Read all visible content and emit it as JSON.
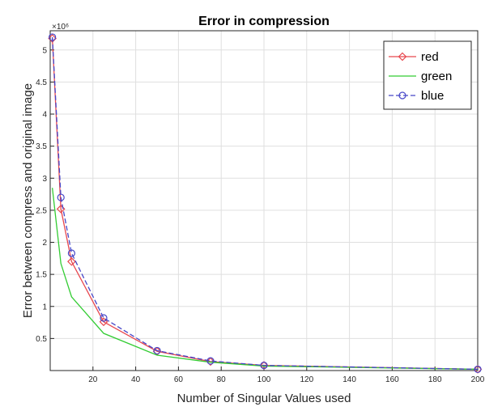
{
  "chart_data": {
    "type": "line",
    "title": "Error in compression",
    "xlabel": "Number of Singular Values used",
    "ylabel": "Error between compress and original image",
    "x": [
      1,
      5,
      10,
      25,
      50,
      75,
      100,
      200
    ],
    "xlim": [
      0,
      200
    ],
    "ylim": [
      0,
      5.3
    ],
    "y_exponent_label": "×10⁶",
    "xticks": [
      20,
      40,
      60,
      80,
      100,
      120,
      140,
      160,
      180,
      200
    ],
    "yticks": [
      0.5,
      1,
      1.5,
      2,
      2.5,
      3,
      3.5,
      4,
      4.5,
      5
    ],
    "grid": true,
    "legend_position": "top-right",
    "series": [
      {
        "name": "red",
        "color": "#e8474e",
        "marker": "diamond",
        "line_style": "solid",
        "values": [
          5.18,
          2.52,
          1.7,
          0.76,
          0.3,
          0.14,
          0.08,
          0.02
        ]
      },
      {
        "name": "green",
        "color": "#33cc33",
        "marker": "none",
        "line_style": "solid",
        "values": [
          2.85,
          1.67,
          1.15,
          0.58,
          0.24,
          0.13,
          0.07,
          0.02
        ]
      },
      {
        "name": "blue",
        "color": "#4646c8",
        "marker": "circle",
        "line_style": "dashed",
        "values": [
          5.2,
          2.7,
          1.83,
          0.82,
          0.31,
          0.15,
          0.08,
          0.02
        ]
      }
    ]
  }
}
